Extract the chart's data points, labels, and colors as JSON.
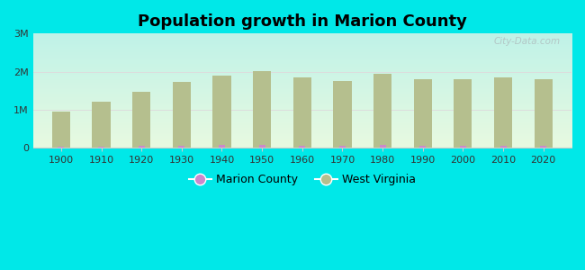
{
  "title": "Population growth in Marion County",
  "years": [
    1900,
    1910,
    1920,
    1930,
    1940,
    1950,
    1960,
    1970,
    1980,
    1990,
    2000,
    2010,
    2020
  ],
  "wv_population": [
    958800,
    1221119,
    1463701,
    1729205,
    1901974,
    2005552,
    1860421,
    1744237,
    1949644,
    1793477,
    1808344,
    1852994,
    1793716
  ],
  "marion_population": [
    29068,
    36082,
    46983,
    61405,
    71521,
    75920,
    63717,
    61356,
    65789,
    57249,
    56598,
    56418,
    56600
  ],
  "wv_color": "#b5bf8e",
  "marion_color": "#cc88cc",
  "bg_outer": "#00e8e8",
  "ylabel_ticks": [
    "0",
    "1M",
    "2M",
    "3M"
  ],
  "ylabel_values": [
    0,
    1000000,
    2000000,
    3000000
  ],
  "ylim": [
    0,
    3000000
  ],
  "bar_width": 0.45,
  "watermark": "City-Data.com"
}
